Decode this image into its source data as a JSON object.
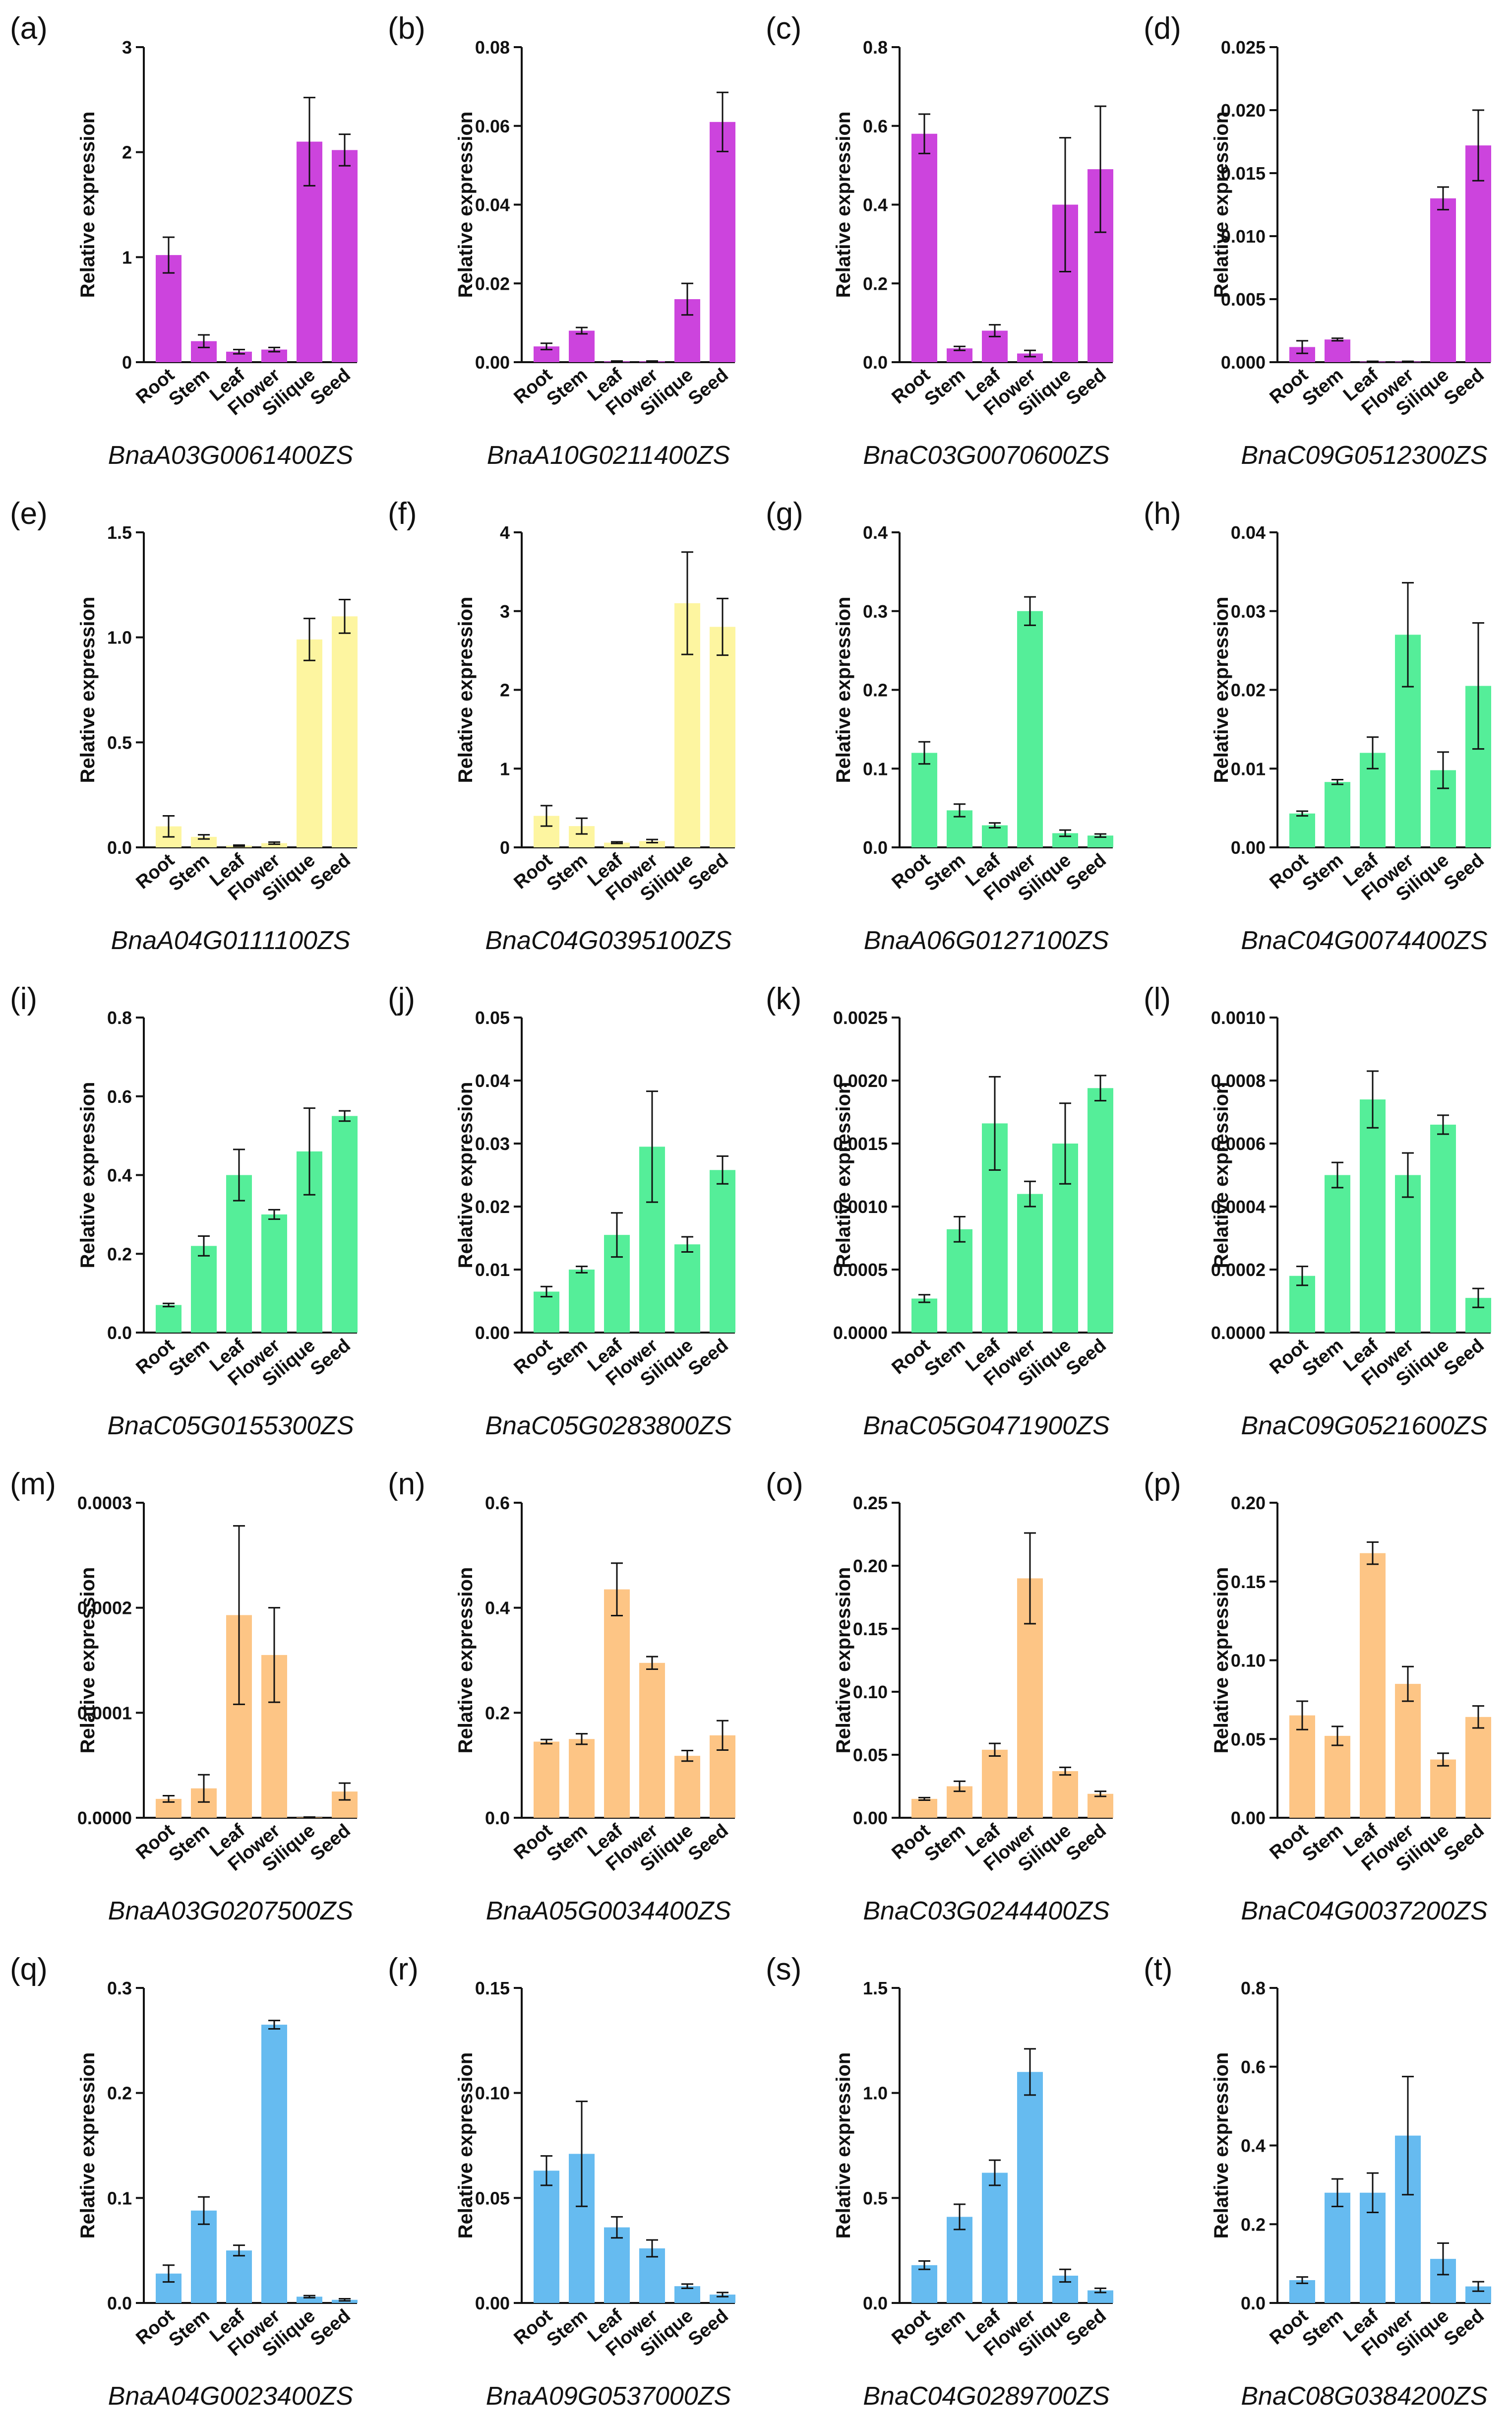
{
  "figure": {
    "categories": [
      "Root",
      "Stem",
      "Leaf",
      "Flower",
      "Silique",
      "Seed"
    ],
    "ylabel": "Relative expression"
  },
  "colors": {
    "purple": "#cc44dd",
    "yellow": "#fdf5a0",
    "green": "#55ee99",
    "orange": "#fdc585",
    "blue": "#66bbf0",
    "axis": "#111111"
  },
  "chart_data": [
    {
      "panel": "(a)",
      "type": "bar",
      "title": "BnaA03G0061400ZS",
      "ylabel": "Relative expression",
      "color": "purple",
      "categories": [
        "Root",
        "Stem",
        "Leaf",
        "Flower",
        "Silique",
        "Seed"
      ],
      "yticks": [
        "0",
        "1",
        "2",
        "3"
      ],
      "ylim": [
        0,
        3
      ],
      "values": [
        1.02,
        0.2,
        0.1,
        0.12,
        2.1,
        2.02
      ],
      "errors": [
        0.17,
        0.06,
        0.02,
        0.02,
        0.42,
        0.15
      ]
    },
    {
      "panel": "(b)",
      "type": "bar",
      "title": "BnaA10G0211400ZS",
      "ylabel": "Relative expression",
      "color": "purple",
      "categories": [
        "Root",
        "Stem",
        "Leaf",
        "Flower",
        "Silique",
        "Seed"
      ],
      "yticks": [
        "0.00",
        "0.02",
        "0.04",
        "0.06",
        "0.08"
      ],
      "ylim": [
        0,
        0.08
      ],
      "values": [
        0.004,
        0.008,
        0.0002,
        0.0002,
        0.016,
        0.061
      ],
      "errors": [
        0.0008,
        0.0008,
        0.0001,
        0.0001,
        0.004,
        0.0075
      ]
    },
    {
      "panel": "(c)",
      "type": "bar",
      "title": "BnaC03G0070600ZS",
      "ylabel": "Relative expression",
      "color": "purple",
      "categories": [
        "Root",
        "Stem",
        "Leaf",
        "Flower",
        "Silique",
        "Seed"
      ],
      "yticks": [
        "0.0",
        "0.2",
        "0.4",
        "0.6",
        "0.8"
      ],
      "ylim": [
        0,
        0.8
      ],
      "values": [
        0.58,
        0.035,
        0.08,
        0.022,
        0.4,
        0.49
      ],
      "errors": [
        0.05,
        0.005,
        0.015,
        0.008,
        0.17,
        0.16
      ]
    },
    {
      "panel": "(d)",
      "type": "bar",
      "title": "BnaC09G0512300ZS",
      "ylabel": "Relative expression",
      "color": "purple",
      "categories": [
        "Root",
        "Stem",
        "Leaf",
        "Flower",
        "Silique",
        "Seed"
      ],
      "yticks": [
        "0.000",
        "0.005",
        "0.010",
        "0.015",
        "0.020",
        "0.025"
      ],
      "ylim": [
        0,
        0.025
      ],
      "values": [
        0.0012,
        0.0018,
        5e-05,
        5e-05,
        0.013,
        0.0172
      ],
      "errors": [
        0.0005,
        0.0001,
        2e-05,
        2e-05,
        0.0009,
        0.0028
      ]
    },
    {
      "panel": "(e)",
      "type": "bar",
      "title": "BnaA04G0111100ZS",
      "ylabel": "Relative expression",
      "color": "yellow",
      "categories": [
        "Root",
        "Stem",
        "Leaf",
        "Flower",
        "Silique",
        "Seed"
      ],
      "yticks": [
        "0.0",
        "0.5",
        "1.0",
        "1.5"
      ],
      "ylim": [
        0,
        1.5
      ],
      "values": [
        0.1,
        0.05,
        0.008,
        0.02,
        0.99,
        1.1
      ],
      "errors": [
        0.05,
        0.01,
        0.003,
        0.005,
        0.1,
        0.08
      ]
    },
    {
      "panel": "(f)",
      "type": "bar",
      "title": "BnaC04G0395100ZS",
      "ylabel": "Relative expression",
      "color": "yellow",
      "categories": [
        "Root",
        "Stem",
        "Leaf",
        "Flower",
        "Silique",
        "Seed"
      ],
      "yticks": [
        "0",
        "1",
        "2",
        "3",
        "4"
      ],
      "ylim": [
        0,
        4
      ],
      "values": [
        0.4,
        0.27,
        0.06,
        0.08,
        3.1,
        2.8
      ],
      "errors": [
        0.13,
        0.1,
        0.01,
        0.02,
        0.65,
        0.36
      ]
    },
    {
      "panel": "(g)",
      "type": "bar",
      "title": "BnaA06G0127100ZS",
      "ylabel": "Relative expression",
      "color": "green",
      "categories": [
        "Root",
        "Stem",
        "Leaf",
        "Flower",
        "Silique",
        "Seed"
      ],
      "yticks": [
        "0.0",
        "0.1",
        "0.2",
        "0.3",
        "0.4"
      ],
      "ylim": [
        0,
        0.4
      ],
      "values": [
        0.12,
        0.047,
        0.028,
        0.3,
        0.018,
        0.015
      ],
      "errors": [
        0.014,
        0.008,
        0.003,
        0.018,
        0.004,
        0.002
      ]
    },
    {
      "panel": "(h)",
      "type": "bar",
      "title": "BnaC04G0074400ZS",
      "ylabel": "Relative expression",
      "color": "green",
      "categories": [
        "Root",
        "Stem",
        "Leaf",
        "Flower",
        "Silique",
        "Seed"
      ],
      "yticks": [
        "0.00",
        "0.01",
        "0.02",
        "0.03",
        "0.04"
      ],
      "ylim": [
        0,
        0.04
      ],
      "values": [
        0.0043,
        0.0083,
        0.012,
        0.027,
        0.0098,
        0.0205
      ],
      "errors": [
        0.0003,
        0.0003,
        0.002,
        0.0066,
        0.0023,
        0.008
      ]
    },
    {
      "panel": "(i)",
      "type": "bar",
      "title": "BnaC05G0155300ZS",
      "ylabel": "Relative expression",
      "color": "green",
      "categories": [
        "Root",
        "Stem",
        "Leaf",
        "Flower",
        "Silique",
        "Seed"
      ],
      "yticks": [
        "0.0",
        "0.2",
        "0.4",
        "0.6",
        "0.8"
      ],
      "ylim": [
        0,
        0.8
      ],
      "values": [
        0.07,
        0.22,
        0.4,
        0.3,
        0.46,
        0.55
      ],
      "errors": [
        0.004,
        0.025,
        0.065,
        0.012,
        0.11,
        0.013
      ]
    },
    {
      "panel": "(j)",
      "type": "bar",
      "title": "BnaC05G0283800ZS",
      "ylabel": "Relative expression",
      "color": "green",
      "categories": [
        "Root",
        "Stem",
        "Leaf",
        "Flower",
        "Silique",
        "Seed"
      ],
      "yticks": [
        "0.00",
        "0.01",
        "0.02",
        "0.03",
        "0.04",
        "0.05"
      ],
      "ylim": [
        0,
        0.05
      ],
      "values": [
        0.0065,
        0.01,
        0.0155,
        0.0295,
        0.014,
        0.0258
      ],
      "errors": [
        0.0008,
        0.0005,
        0.0035,
        0.0088,
        0.0012,
        0.0022
      ]
    },
    {
      "panel": "(k)",
      "type": "bar",
      "title": "BnaC05G0471900ZS",
      "ylabel": "Relative expression",
      "color": "green",
      "categories": [
        "Root",
        "Stem",
        "Leaf",
        "Flower",
        "Silique",
        "Seed"
      ],
      "yticks": [
        "0.0000",
        "0.0005",
        "0.0010",
        "0.0015",
        "0.0020",
        "0.0025"
      ],
      "ylim": [
        0,
        0.0025
      ],
      "values": [
        0.00027,
        0.00082,
        0.00166,
        0.0011,
        0.0015,
        0.00194
      ],
      "errors": [
        3e-05,
        0.0001,
        0.00037,
        0.0001,
        0.00032,
        0.0001
      ]
    },
    {
      "panel": "(l)",
      "type": "bar",
      "title": "BnaC09G0521600ZS",
      "ylabel": "Relative expression",
      "color": "green",
      "categories": [
        "Root",
        "Stem",
        "Leaf",
        "Flower",
        "Silique",
        "Seed"
      ],
      "yticks": [
        "0.0000",
        "0.0002",
        "0.0004",
        "0.0006",
        "0.0008",
        "0.0010"
      ],
      "ylim": [
        0,
        0.001
      ],
      "values": [
        0.00018,
        0.0005,
        0.00074,
        0.0005,
        0.00066,
        0.00011
      ],
      "errors": [
        3e-05,
        4e-05,
        9e-05,
        7e-05,
        3e-05,
        3e-05
      ]
    },
    {
      "panel": "(m)",
      "type": "bar",
      "title": "BnaA03G0207500ZS",
      "ylabel": "Relative expression",
      "color": "orange",
      "categories": [
        "Root",
        "Stem",
        "Leaf",
        "Flower",
        "Silique",
        "Seed"
      ],
      "yticks": [
        "0.0000",
        "0.0001",
        "0.0002",
        "0.0003"
      ],
      "ylim": [
        0,
        0.0003
      ],
      "values": [
        1.8e-05,
        2.8e-05,
        0.000193,
        0.000155,
        5e-07,
        2.5e-05
      ],
      "errors": [
        3e-06,
        1.3e-05,
        8.5e-05,
        4.5e-05,
        2e-07,
        8e-06
      ]
    },
    {
      "panel": "(n)",
      "type": "bar",
      "title": "BnaA05G0034400ZS",
      "ylabel": "Relative expression",
      "color": "orange",
      "categories": [
        "Root",
        "Stem",
        "Leaf",
        "Flower",
        "Silique",
        "Seed"
      ],
      "yticks": [
        "0.0",
        "0.2",
        "0.4",
        "0.6"
      ],
      "ylim": [
        0,
        0.6
      ],
      "values": [
        0.145,
        0.15,
        0.435,
        0.295,
        0.118,
        0.157
      ],
      "errors": [
        0.004,
        0.01,
        0.05,
        0.012,
        0.01,
        0.028
      ]
    },
    {
      "panel": "(o)",
      "type": "bar",
      "title": "BnaC03G0244400ZS",
      "ylabel": "Relative expression",
      "color": "orange",
      "categories": [
        "Root",
        "Stem",
        "Leaf",
        "Flower",
        "Silique",
        "Seed"
      ],
      "yticks": [
        "0.00",
        "0.05",
        "0.10",
        "0.15",
        "0.20",
        "0.25"
      ],
      "ylim": [
        0,
        0.25
      ],
      "values": [
        0.015,
        0.025,
        0.054,
        0.19,
        0.037,
        0.019
      ],
      "errors": [
        0.001,
        0.004,
        0.005,
        0.036,
        0.003,
        0.002
      ]
    },
    {
      "panel": "(p)",
      "type": "bar",
      "title": "BnaC04G0037200ZS",
      "ylabel": "Relative expression",
      "color": "orange",
      "categories": [
        "Root",
        "Stem",
        "Leaf",
        "Flower",
        "Silique",
        "Seed"
      ],
      "yticks": [
        "0.00",
        "0.05",
        "0.10",
        "0.15",
        "0.20"
      ],
      "ylim": [
        0,
        0.2
      ],
      "values": [
        0.065,
        0.052,
        0.168,
        0.085,
        0.037,
        0.064
      ],
      "errors": [
        0.009,
        0.006,
        0.007,
        0.011,
        0.004,
        0.007
      ]
    },
    {
      "panel": "(q)",
      "type": "bar",
      "title": "BnaA04G0023400ZS",
      "ylabel": "Relative expression",
      "color": "blue",
      "categories": [
        "Root",
        "Stem",
        "Leaf",
        "Flower",
        "Silique",
        "Seed"
      ],
      "yticks": [
        "0.0",
        "0.1",
        "0.2",
        "0.3"
      ],
      "ylim": [
        0,
        0.3
      ],
      "values": [
        0.028,
        0.088,
        0.05,
        0.265,
        0.006,
        0.003
      ],
      "errors": [
        0.008,
        0.013,
        0.005,
        0.004,
        0.001,
        0.001
      ]
    },
    {
      "panel": "(r)",
      "type": "bar",
      "title": "BnaA09G0537000ZS",
      "ylabel": "Relative expression",
      "color": "blue",
      "categories": [
        "Root",
        "Stem",
        "Leaf",
        "Flower",
        "Silique",
        "Seed"
      ],
      "yticks": [
        "0.00",
        "0.05",
        "0.10",
        "0.15"
      ],
      "ylim": [
        0,
        0.15
      ],
      "values": [
        0.063,
        0.071,
        0.036,
        0.026,
        0.008,
        0.004
      ],
      "errors": [
        0.007,
        0.025,
        0.005,
        0.004,
        0.001,
        0.001
      ]
    },
    {
      "panel": "(s)",
      "type": "bar",
      "title": "BnaC04G0289700ZS",
      "ylabel": "Relative expression",
      "color": "blue",
      "categories": [
        "Root",
        "Stem",
        "Leaf",
        "Flower",
        "Silique",
        "Seed"
      ],
      "yticks": [
        "0.0",
        "0.5",
        "1.0",
        "1.5"
      ],
      "ylim": [
        0,
        1.5
      ],
      "values": [
        0.18,
        0.41,
        0.62,
        1.1,
        0.13,
        0.06
      ],
      "errors": [
        0.02,
        0.06,
        0.06,
        0.11,
        0.03,
        0.01
      ]
    },
    {
      "panel": "(t)",
      "type": "bar",
      "title": "BnaC08G0384200ZS",
      "ylabel": "Relative expression",
      "color": "blue",
      "categories": [
        "Root",
        "Stem",
        "Leaf",
        "Flower",
        "Silique",
        "Seed"
      ],
      "yticks": [
        "0.0",
        "0.2",
        "0.4",
        "0.6",
        "0.8"
      ],
      "ylim": [
        0,
        0.8
      ],
      "values": [
        0.058,
        0.28,
        0.28,
        0.425,
        0.112,
        0.042
      ],
      "errors": [
        0.008,
        0.035,
        0.05,
        0.15,
        0.04,
        0.012
      ]
    }
  ]
}
